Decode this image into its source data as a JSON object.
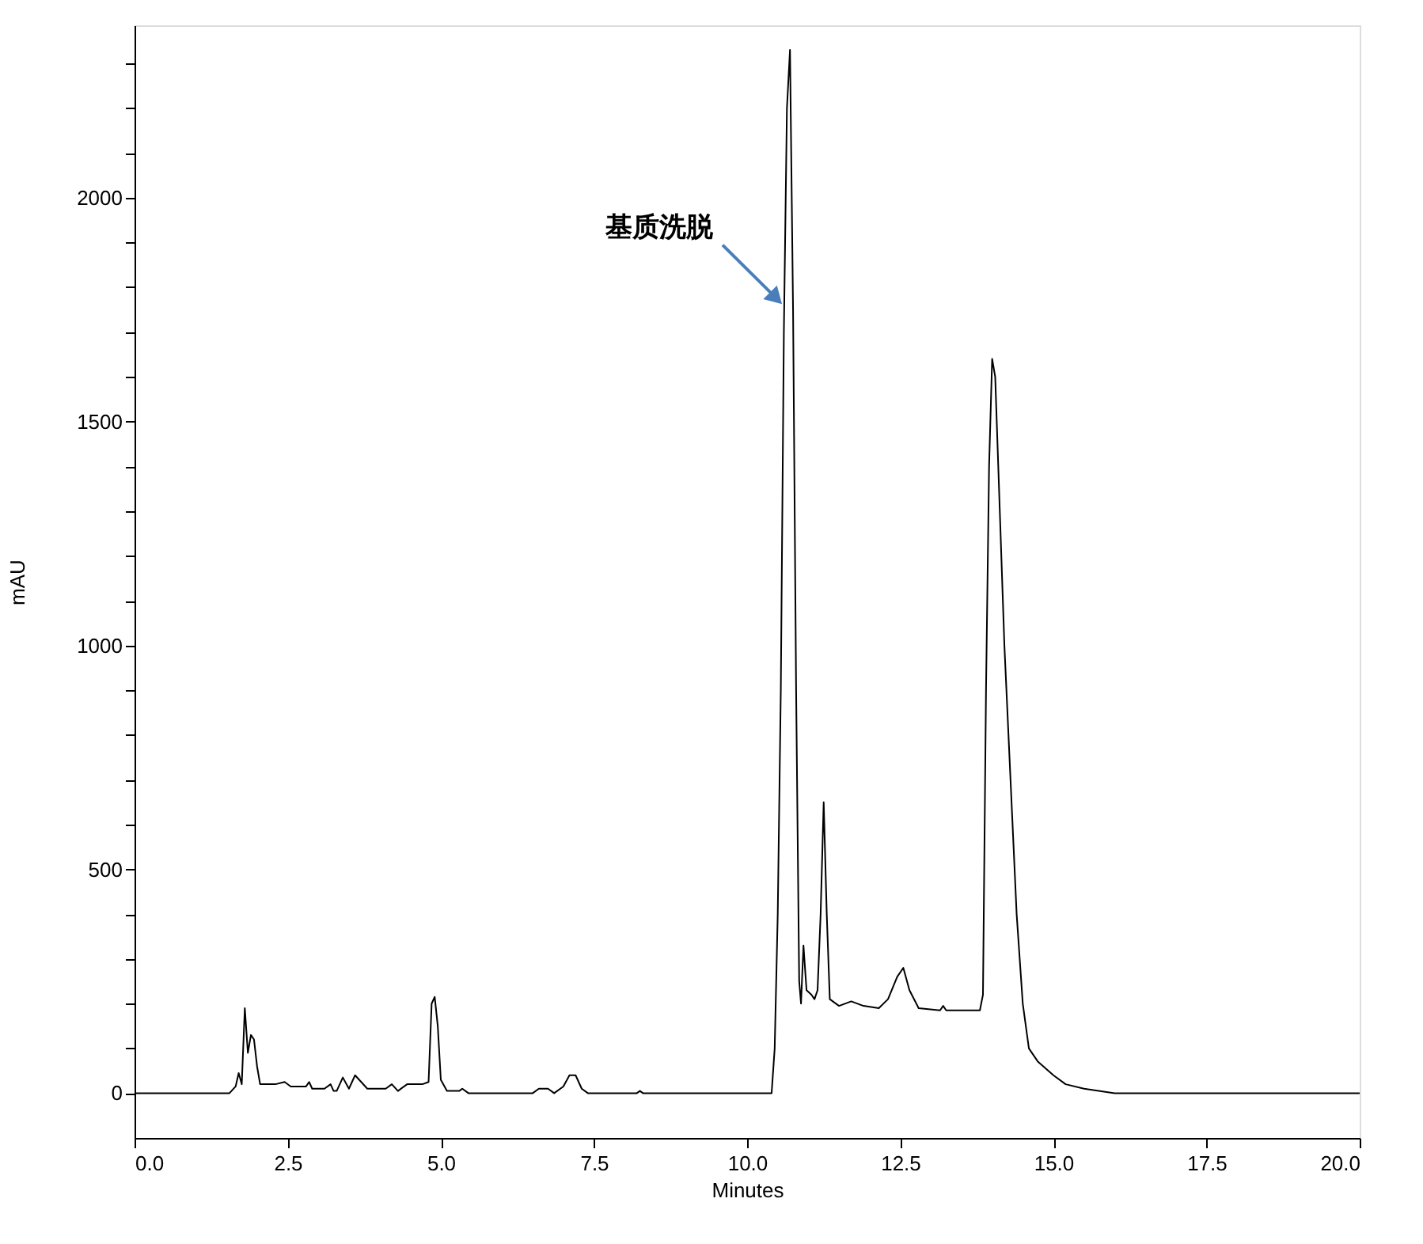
{
  "chart_data": {
    "type": "line",
    "xlabel": "Minutes",
    "ylabel": "mAU",
    "xlim": [
      0,
      20
    ],
    "xticks": [
      {
        "value": 0,
        "label": "0.0"
      },
      {
        "value": 2.5,
        "label": "2.5"
      },
      {
        "value": 5,
        "label": "5.0"
      },
      {
        "value": 7.5,
        "label": "7.5"
      },
      {
        "value": 10,
        "label": "10.0"
      },
      {
        "value": 12.5,
        "label": "12.5"
      },
      {
        "value": 15,
        "label": "15.0"
      },
      {
        "value": 17.5,
        "label": "17.5"
      },
      {
        "value": 20,
        "label": "20.0"
      }
    ],
    "ylim": [
      -100,
      2385
    ],
    "yticks": [
      0,
      {
        "value": 100,
        "label": null
      },
      {
        "value": 200,
        "label": null
      },
      {
        "value": 300,
        "label": null
      },
      {
        "value": 400,
        "label": null
      },
      500,
      {
        "value": 600,
        "label": null
      },
      {
        "value": 700,
        "label": null
      },
      {
        "value": 800,
        "label": null
      },
      {
        "value": 900,
        "label": null
      },
      1000,
      {
        "value": 1100,
        "label": null
      },
      {
        "value": 1200,
        "label": null
      },
      {
        "value": 1300,
        "label": null
      },
      {
        "value": 1400,
        "label": null
      },
      1500,
      {
        "value": 1600,
        "label": null
      },
      {
        "value": 1700,
        "label": null
      },
      {
        "value": 1800,
        "label": null
      },
      {
        "value": 1900,
        "label": null
      },
      2000,
      {
        "value": 2100,
        "label": null
      },
      {
        "value": 2200,
        "label": null
      },
      {
        "value": 2300,
        "label": null
      }
    ],
    "grid": false,
    "marker": "none",
    "line_style": "solid",
    "annotations": [
      {
        "text": "基质洗脱",
        "x": 10.6,
        "y": 1760
      }
    ],
    "series": [
      {
        "color": "#000000",
        "x": [
          0,
          1.55,
          1.65,
          1.7,
          1.75,
          1.8,
          1.85,
          1.9,
          1.95,
          2.0,
          2.05,
          2.3,
          2.45,
          2.55,
          2.8,
          2.85,
          2.9,
          3.1,
          3.2,
          3.25,
          3.3,
          3.4,
          3.5,
          3.6,
          3.7,
          3.8,
          4.1,
          4.2,
          4.3,
          4.45,
          4.7,
          4.8,
          4.85,
          4.9,
          4.95,
          5.0,
          5.1,
          5.3,
          5.35,
          5.45,
          6.5,
          6.6,
          6.75,
          6.85,
          7.0,
          7.1,
          7.2,
          7.3,
          7.4,
          8.2,
          8.25,
          8.3,
          10.4,
          10.45,
          10.5,
          10.55,
          10.6,
          10.65,
          10.7,
          10.75,
          10.8,
          10.85,
          10.88,
          10.92,
          10.97,
          11.05,
          11.1,
          11.15,
          11.2,
          11.25,
          11.3,
          11.35,
          11.5,
          11.7,
          11.9,
          12.15,
          12.3,
          12.45,
          12.55,
          12.65,
          12.8,
          13.15,
          13.2,
          13.25,
          13.8,
          13.85,
          13.9,
          13.95,
          14.0,
          14.05,
          14.1,
          14.2,
          14.3,
          14.4,
          14.5,
          14.6,
          14.75,
          15.0,
          15.2,
          15.5,
          16.0,
          20
        ],
        "values": [
          0,
          0,
          15,
          45,
          20,
          190,
          90,
          130,
          120,
          60,
          20,
          20,
          25,
          15,
          15,
          25,
          10,
          10,
          20,
          5,
          5,
          35,
          10,
          40,
          25,
          10,
          10,
          20,
          5,
          20,
          20,
          25,
          200,
          215,
          150,
          30,
          5,
          5,
          10,
          0,
          0,
          10,
          10,
          0,
          15,
          40,
          40,
          10,
          0,
          0,
          5,
          0,
          0,
          100,
          400,
          900,
          1700,
          2200,
          2330,
          1750,
          900,
          250,
          200,
          330,
          230,
          220,
          210,
          230,
          400,
          650,
          400,
          210,
          195,
          205,
          195,
          190,
          210,
          260,
          280,
          230,
          190,
          185,
          195,
          185,
          185,
          220,
          900,
          1400,
          1640,
          1600,
          1400,
          1000,
          700,
          400,
          200,
          100,
          70,
          40,
          20,
          10,
          0,
          0
        ]
      }
    ]
  }
}
